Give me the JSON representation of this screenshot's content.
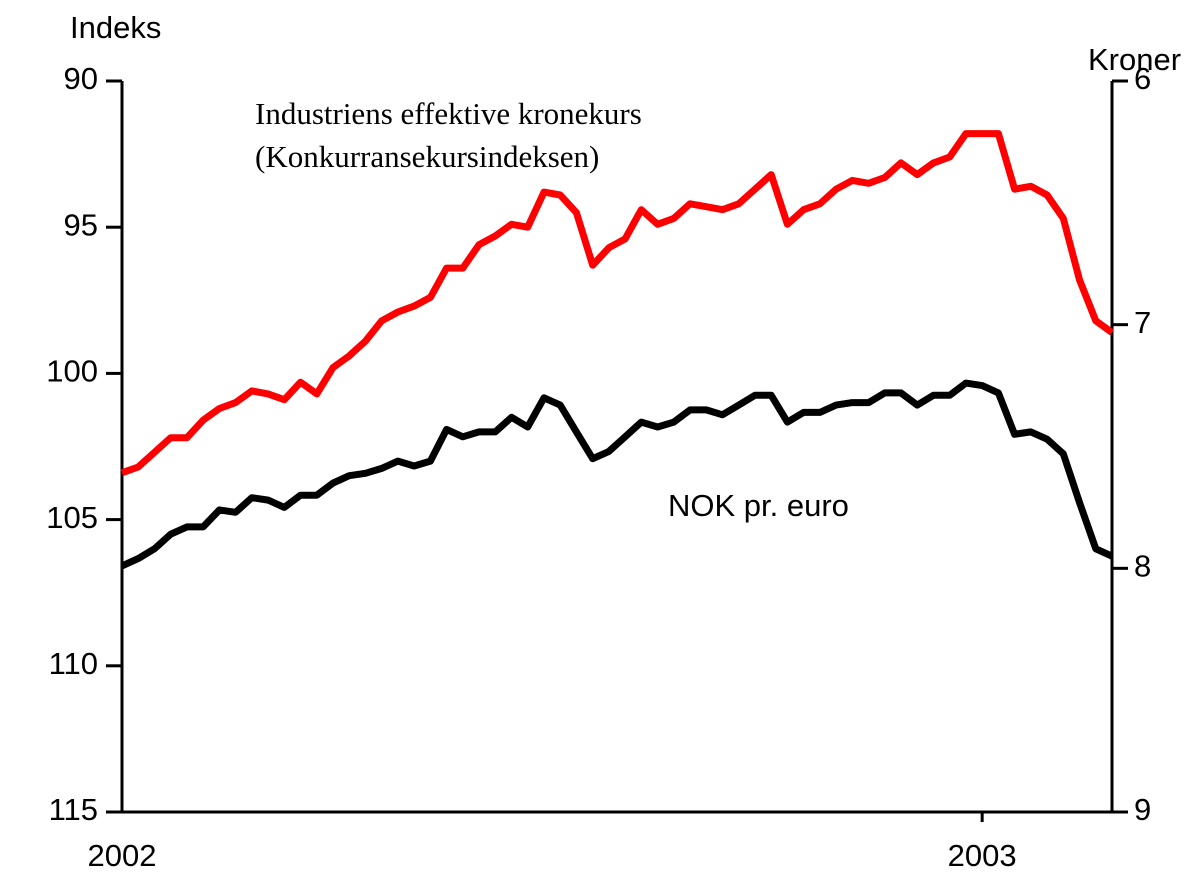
{
  "chart_data": {
    "type": "line",
    "ylabel": "Indeks",
    "y2label": "Kroner",
    "annotations": [
      "Industriens effektive kronekurs",
      "(Konkurransekursindeksen)",
      "NOK pr. euro"
    ],
    "categories": [
      "2002",
      null,
      null,
      null,
      null,
      null,
      null,
      null,
      null,
      null,
      null,
      null,
      null,
      null,
      null,
      null,
      null,
      null,
      null,
      null,
      null,
      null,
      null,
      null,
      null,
      null,
      null,
      null,
      null,
      null,
      null,
      null,
      null,
      null,
      null,
      null,
      null,
      null,
      null,
      null,
      null,
      null,
      null,
      null,
      null,
      null,
      null,
      null,
      null,
      null,
      null,
      null,
      null,
      "2003",
      null,
      null,
      null,
      null,
      null,
      null,
      null,
      null
    ],
    "ylim": [
      90,
      115
    ],
    "yticks": [
      90,
      95,
      100,
      105,
      110,
      115
    ],
    "yinverted": true,
    "y2lim": [
      6,
      9
    ],
    "y2ticks": [
      6,
      7,
      8,
      9
    ],
    "y2inverted": true,
    "series": [
      {
        "color": "#ff0000",
        "axis": "y",
        "values": [
          103.4,
          103.2,
          102.7,
          102.2,
          102.2,
          101.6,
          101.2,
          101.0,
          100.6,
          100.7,
          100.9,
          100.3,
          100.7,
          99.8,
          99.4,
          98.9,
          98.2,
          97.9,
          97.7,
          97.4,
          96.4,
          96.4,
          95.6,
          95.3,
          94.9,
          95.0,
          93.8,
          93.9,
          94.5,
          96.3,
          95.7,
          95.4,
          94.4,
          94.9,
          94.7,
          94.2,
          94.3,
          94.4,
          94.2,
          93.7,
          93.2,
          94.9,
          94.4,
          94.2,
          93.7,
          93.4,
          93.5,
          93.3,
          92.8,
          93.2,
          92.8,
          92.6,
          91.8,
          91.8,
          91.8,
          93.7,
          93.6,
          93.9,
          94.7,
          96.8,
          98.2,
          98.6
        ]
      },
      {
        "color": "#000000",
        "axis": "y2",
        "values": [
          7.99,
          7.96,
          7.92,
          7.86,
          7.83,
          7.83,
          7.76,
          7.77,
          7.71,
          7.72,
          7.75,
          7.7,
          7.7,
          7.65,
          7.62,
          7.61,
          7.59,
          7.56,
          7.58,
          7.56,
          7.43,
          7.46,
          7.44,
          7.44,
          7.38,
          7.42,
          7.3,
          7.33,
          7.44,
          7.55,
          7.52,
          7.46,
          7.4,
          7.42,
          7.4,
          7.35,
          7.35,
          7.37,
          7.33,
          7.29,
          7.29,
          7.4,
          7.36,
          7.36,
          7.33,
          7.32,
          7.32,
          7.28,
          7.28,
          7.33,
          7.29,
          7.29,
          7.24,
          7.25,
          7.28,
          7.45,
          7.44,
          7.47,
          7.53,
          7.73,
          7.92,
          7.95
        ]
      }
    ]
  }
}
